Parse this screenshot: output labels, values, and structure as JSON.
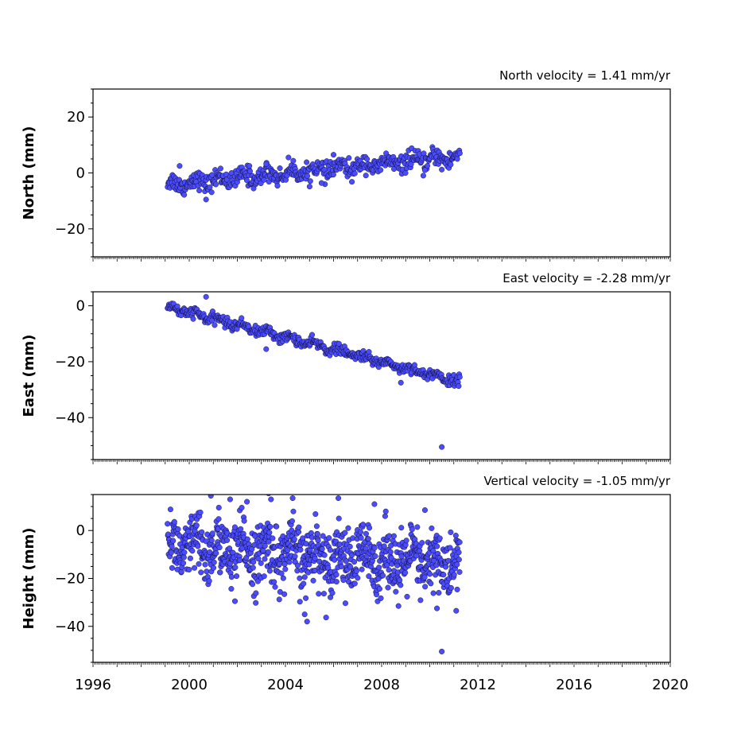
{
  "chart_data": [
    {
      "type": "scatter",
      "title": "North velocity = 1.41 mm/yr",
      "ylabel": "North (mm)",
      "ylim": [
        -30,
        30
      ],
      "xlim": [
        1996,
        2020
      ],
      "yticks": [
        {
          "value": 20,
          "label": "20"
        },
        {
          "value": 0,
          "label": "0"
        },
        {
          "value": -20,
          "label": "−20"
        }
      ],
      "marker_color": "#4b4bff",
      "trend": {
        "start": 1999.1,
        "end": 2011.25,
        "y_start": -4.2,
        "slope": 0.82,
        "seasonal_amplitude": 1.4,
        "noise": 1.6,
        "n": 480
      },
      "outliers": [
        {
          "x": 1999.6,
          "y": 2.5
        },
        {
          "x": 2000.7,
          "y": -9.5
        },
        {
          "x": 2002.5,
          "y": 2.5
        },
        {
          "x": 2003.2,
          "y": 3.2
        },
        {
          "x": 2006.0,
          "y": 6.5
        },
        {
          "x": 2005.5,
          "y": -3.6
        },
        {
          "x": 2009.8,
          "y": 1.0
        },
        {
          "x": 2010.5,
          "y": 1.2
        }
      ]
    },
    {
      "type": "scatter",
      "title": "East velocity = -2.28 mm/yr",
      "ylabel": "East (mm)",
      "ylim": [
        -55,
        5
      ],
      "xlim": [
        1996,
        2020
      ],
      "yticks": [
        {
          "value": 0,
          "label": "0"
        },
        {
          "value": -20,
          "label": "−20"
        },
        {
          "value": -40,
          "label": "−40"
        }
      ],
      "marker_color": "#4b4bff",
      "trend": {
        "start": 1999.1,
        "end": 2011.25,
        "y_start": -0.5,
        "slope": -2.2,
        "seasonal_amplitude": 0.8,
        "noise": 0.9,
        "n": 480
      },
      "outliers": [
        {
          "x": 2000.7,
          "y": 3.2
        },
        {
          "x": 2010.5,
          "y": -50.5
        },
        {
          "x": 2003.2,
          "y": -15.5
        },
        {
          "x": 2008.8,
          "y": -27.5
        }
      ]
    },
    {
      "type": "scatter",
      "title": "Vertical velocity = -1.05 mm/yr",
      "ylabel": "Height (mm)",
      "ylim": [
        -55,
        15
      ],
      "xlim": [
        1996,
        2020
      ],
      "yticks": [
        {
          "value": 0,
          "label": "0"
        },
        {
          "value": -20,
          "label": "−20"
        },
        {
          "value": -40,
          "label": "−40"
        }
      ],
      "marker_color": "#4b4bff",
      "trend": {
        "start": 1999.1,
        "end": 2011.25,
        "y_start": -7,
        "slope": -0.6,
        "seasonal_amplitude": 4.0,
        "noise": 6.5,
        "n": 900
      },
      "outliers": [
        {
          "x": 2000.9,
          "y": 14.5
        },
        {
          "x": 2001.7,
          "y": 13.0
        },
        {
          "x": 2002.4,
          "y": 12.0
        },
        {
          "x": 2003.3,
          "y": 15.5
        },
        {
          "x": 2003.4,
          "y": 13.0
        },
        {
          "x": 2004.3,
          "y": 13.5
        },
        {
          "x": 2006.2,
          "y": 13.5
        },
        {
          "x": 2007.7,
          "y": 11.0
        },
        {
          "x": 2009.8,
          "y": 8.5
        },
        {
          "x": 2004.9,
          "y": -38.0
        },
        {
          "x": 2004.8,
          "y": -35.0
        },
        {
          "x": 2008.7,
          "y": -31.5
        },
        {
          "x": 2010.3,
          "y": -32.5
        },
        {
          "x": 2010.5,
          "y": -50.5
        },
        {
          "x": 2011.1,
          "y": -33.5
        },
        {
          "x": 2001.9,
          "y": -29.5
        }
      ]
    }
  ],
  "x_axis": {
    "tick_labels": [
      {
        "value": 1996,
        "label": "1996"
      },
      {
        "value": 2000,
        "label": "2000"
      },
      {
        "value": 2004,
        "label": "2004"
      },
      {
        "value": 2008,
        "label": "2008"
      },
      {
        "value": 2012,
        "label": "2012"
      },
      {
        "value": 2016,
        "label": "2016"
      },
      {
        "value": 2020,
        "label": "2020"
      }
    ]
  }
}
